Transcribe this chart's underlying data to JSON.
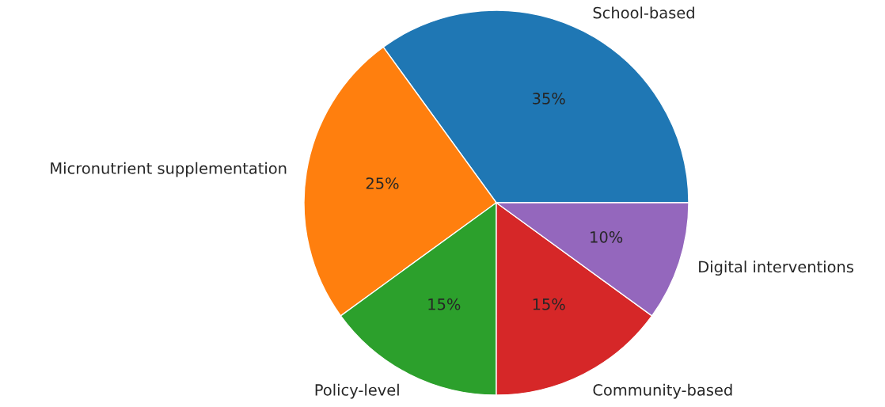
{
  "chart_data": {
    "type": "pie",
    "categories": [
      "School-based",
      "Micronutrient supplementation",
      "Policy-level",
      "Community-based",
      "Digital interventions"
    ],
    "values": [
      35,
      25,
      15,
      15,
      10
    ],
    "value_labels": [
      "35%",
      "25%",
      "15%",
      "15%",
      "10%"
    ],
    "colors": [
      "#1f77b4",
      "#ff7f0e",
      "#2ca02c",
      "#d62728",
      "#9467bd"
    ]
  }
}
